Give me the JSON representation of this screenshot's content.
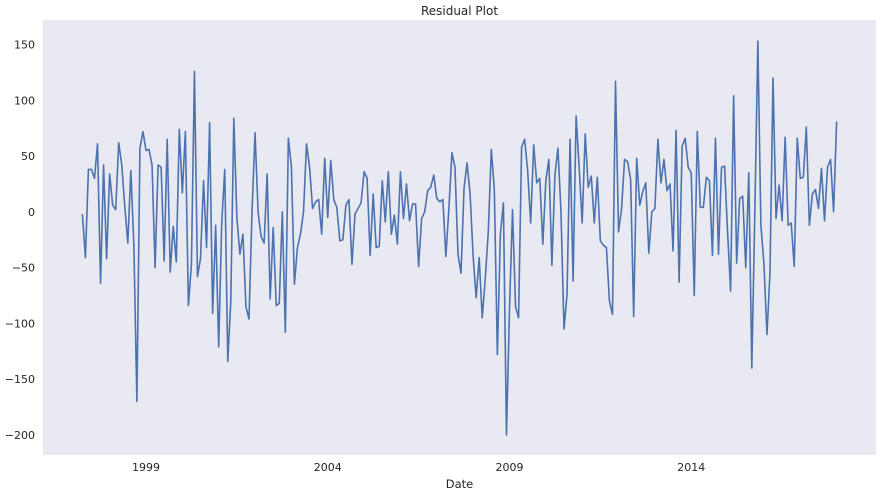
{
  "chart_data": {
    "type": "line",
    "title": "Residual Plot",
    "xlabel": "Date",
    "ylabel": "",
    "grid": false,
    "background_color": "#e9e9f1",
    "line_color": "#4c72b0",
    "x_start": "1997-04",
    "x_frequency": "monthly",
    "xlim": [
      "1996-03",
      "2019-02"
    ],
    "ylim": [
      -218,
      172
    ],
    "x_ticks": [
      {
        "value": "1999",
        "label": "1999"
      },
      {
        "value": "2004",
        "label": "2004"
      },
      {
        "value": "2009",
        "label": "2009"
      },
      {
        "value": "2014",
        "label": "2014"
      }
    ],
    "y_ticks": [
      {
        "value": 150,
        "label": "150"
      },
      {
        "value": 100,
        "label": "100"
      },
      {
        "value": 50,
        "label": "50"
      },
      {
        "value": 0,
        "label": "0"
      },
      {
        "value": -50,
        "label": "−50"
      },
      {
        "value": -100,
        "label": "−100"
      },
      {
        "value": -150,
        "label": "−150"
      },
      {
        "value": -200,
        "label": "−200"
      }
    ],
    "series": [
      {
        "values": [
          -2,
          -41,
          38,
          38,
          30,
          61,
          -64,
          42,
          -42,
          34,
          6,
          2,
          62,
          42,
          5,
          -28,
          37,
          -30,
          -170,
          57,
          72,
          55,
          56,
          42,
          -50,
          42,
          40,
          -44,
          65,
          -54,
          -13,
          -45,
          74,
          17,
          72,
          -84,
          -47,
          126,
          -58,
          -42,
          28,
          -32,
          80,
          -91,
          -12,
          -121,
          -10,
          38,
          -134,
          -80,
          84,
          -5,
          -38,
          -20,
          -85,
          -96,
          0,
          71,
          0,
          -22,
          -28,
          34,
          -78,
          -14,
          -84,
          -82,
          0,
          -108,
          66,
          41,
          -65,
          -32,
          -20,
          0,
          61,
          40,
          3,
          9,
          11,
          -20,
          48,
          -5,
          46,
          11,
          4,
          -26,
          -25,
          6,
          11,
          -47,
          -2,
          3,
          8,
          36,
          30,
          -39,
          16,
          -32,
          -31,
          28,
          -9,
          36,
          -20,
          -3,
          -29,
          36,
          -6,
          25,
          -8,
          7,
          7,
          -49,
          -6,
          0,
          19,
          22,
          33,
          12,
          9,
          11,
          -40,
          3,
          53,
          40,
          -38,
          -55,
          21,
          44,
          16,
          -40,
          -77,
          -41,
          -95,
          -60,
          -18,
          56,
          20,
          -128,
          -20,
          8,
          -200,
          -88,
          2,
          -85,
          -95,
          58,
          65,
          37,
          -10,
          60,
          26,
          30,
          -29,
          28,
          47,
          -48,
          33,
          57,
          0,
          -105,
          -74,
          65,
          -62,
          86,
          40,
          -10,
          70,
          22,
          32,
          -10,
          31,
          -26,
          -30,
          -32,
          -80,
          -92,
          117,
          -18,
          3,
          47,
          45,
          29,
          -94,
          48,
          6,
          18,
          26,
          -37,
          0,
          3,
          65,
          26,
          47,
          19,
          25,
          -35,
          73,
          -63,
          59,
          66,
          40,
          35,
          -75,
          72,
          4,
          4,
          31,
          28,
          -39,
          66,
          -38,
          40,
          41,
          -18,
          -71,
          104,
          -46,
          12,
          14,
          -50,
          35,
          -140,
          0,
          153,
          -12,
          -46,
          -110,
          -55,
          120,
          -6,
          24,
          -8,
          67,
          -12,
          -10,
          -49,
          66,
          30,
          31,
          76,
          -12,
          16,
          20,
          3,
          39,
          -8,
          40,
          47,
          0,
          81
        ]
      }
    ]
  }
}
